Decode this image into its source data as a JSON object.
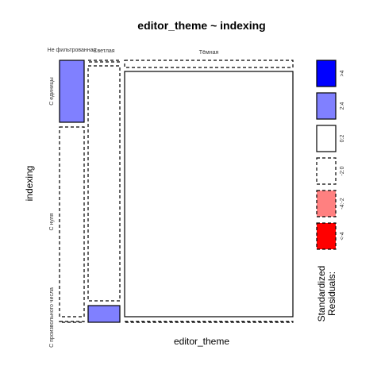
{
  "chart_data": {
    "type": "mosaic",
    "title": "editor_theme ~ indexing",
    "xlabel": "editor_theme",
    "ylabel": "indexing",
    "x_categories": [
      "Не фильтрованная",
      "Светлая",
      "Тёмная"
    ],
    "y_categories": [
      "С единицы",
      "С нуля",
      "С произвольного числа"
    ],
    "cells": [
      {
        "x": "Не фильтрованная",
        "y": "С единицы",
        "residual_class": "2:4"
      },
      {
        "x": "Не фильтрованная",
        "y": "С нуля",
        "residual_class": "-2:0"
      },
      {
        "x": "Не фильтрованная",
        "y": "С произвольного числа",
        "residual_class": "-2:0"
      },
      {
        "x": "Светлая",
        "y": "С единицы",
        "residual_class": "-2:0"
      },
      {
        "x": "Светлая",
        "y": "С нуля",
        "residual_class": "-2:0"
      },
      {
        "x": "Светлая",
        "y": "С произвольного числа",
        "residual_class": "2:4"
      },
      {
        "x": "Тёмная",
        "y": "С единицы",
        "residual_class": "-2:0"
      },
      {
        "x": "Тёмная",
        "y": "С нуля",
        "residual_class": "0:2"
      },
      {
        "x": "Тёмная",
        "y": "С произвольного числа",
        "residual_class": "-2:0"
      }
    ],
    "legend": {
      "title": [
        "Standardized",
        "Residuals:"
      ],
      "placement": "right",
      "items": [
        {
          "label": ">4",
          "color": "#0000ff",
          "border": "solid"
        },
        {
          "label": "2:4",
          "color": "#8080ff",
          "border": "solid"
        },
        {
          "label": "0:2",
          "color": "#ffffff",
          "border": "solid"
        },
        {
          "label": "-2:0",
          "color": "#ffffff",
          "border": "dashed"
        },
        {
          "label": "-4:-2",
          "color": "#ff8080",
          "border": "dashed"
        },
        {
          "label": "<-4",
          "color": "#ff0000",
          "border": "dashed"
        }
      ]
    }
  }
}
